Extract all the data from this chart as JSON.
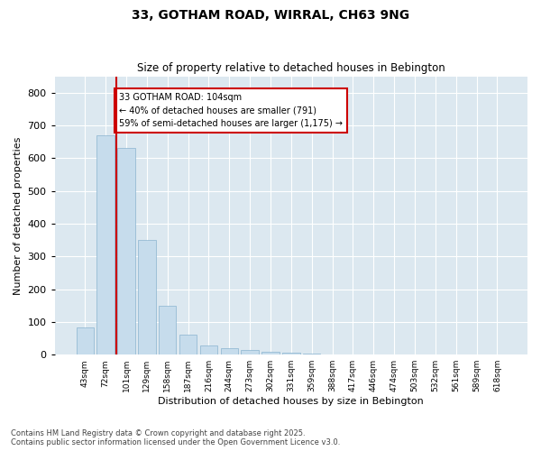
{
  "title": "33, GOTHAM ROAD, WIRRAL, CH63 9NG",
  "subtitle": "Size of property relative to detached houses in Bebington",
  "xlabel": "Distribution of detached houses by size in Bebington",
  "ylabel": "Number of detached properties",
  "footer_line1": "Contains HM Land Registry data © Crown copyright and database right 2025.",
  "footer_line2": "Contains public sector information licensed under the Open Government Licence v3.0.",
  "categories": [
    "43sqm",
    "72sqm",
    "101sqm",
    "129sqm",
    "158sqm",
    "187sqm",
    "216sqm",
    "244sqm",
    "273sqm",
    "302sqm",
    "331sqm",
    "359sqm",
    "388sqm",
    "417sqm",
    "446sqm",
    "474sqm",
    "503sqm",
    "532sqm",
    "561sqm",
    "589sqm",
    "618sqm"
  ],
  "values": [
    83,
    670,
    630,
    350,
    148,
    60,
    27,
    20,
    15,
    10,
    5,
    2,
    1,
    0,
    0,
    0,
    0,
    0,
    0,
    0,
    0
  ],
  "bar_color": "#c6dcec",
  "bar_edge_color": "#8ab4d0",
  "highlight_index": 2,
  "highlight_line_color": "#cc0000",
  "annotation_text": "33 GOTHAM ROAD: 104sqm\n← 40% of detached houses are smaller (791)\n59% of semi-detached houses are larger (1,175) →",
  "annotation_box_color": "#cc0000",
  "annotation_text_color": "#000000",
  "plot_bg_color": "#dce8f0",
  "fig_bg_color": "#ffffff",
  "ylim": [
    0,
    850
  ],
  "yticks": [
    0,
    100,
    200,
    300,
    400,
    500,
    600,
    700,
    800
  ]
}
